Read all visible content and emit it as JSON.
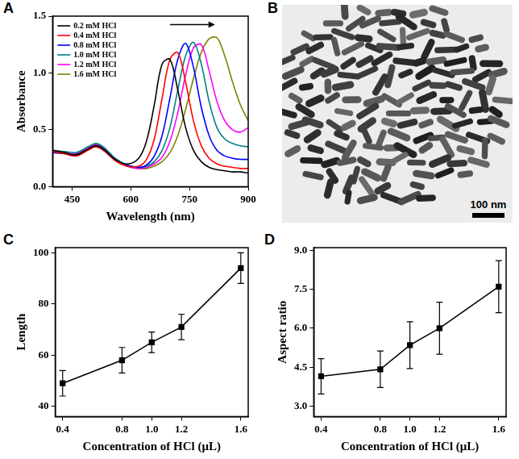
{
  "chart_data": [
    {
      "panel": "A",
      "type": "line",
      "x_label": "Wavelength (nm)",
      "y_label": "Absorbance",
      "x": [
        400,
        430,
        460,
        490,
        510,
        530,
        560,
        590,
        620,
        640,
        660,
        680,
        700,
        720,
        740,
        760,
        780,
        800,
        820,
        840,
        860,
        880,
        900
      ],
      "series": [
        {
          "name": "0.2 mM HCl",
          "color": "#000000",
          "values": [
            0.32,
            0.3,
            0.28,
            0.33,
            0.36,
            0.33,
            0.24,
            0.2,
            0.25,
            0.4,
            0.72,
            1.08,
            1.12,
            0.85,
            0.52,
            0.32,
            0.22,
            0.17,
            0.15,
            0.14,
            0.13,
            0.13,
            0.12
          ]
        },
        {
          "name": "0.4 mM HCl",
          "color": "#ff0000",
          "values": [
            0.31,
            0.29,
            0.27,
            0.32,
            0.35,
            0.32,
            0.23,
            0.18,
            0.18,
            0.24,
            0.42,
            0.78,
            1.12,
            1.18,
            0.92,
            0.58,
            0.36,
            0.25,
            0.2,
            0.18,
            0.17,
            0.16,
            0.16
          ]
        },
        {
          "name": "0.8 mM HCl",
          "color": "#0000ff",
          "values": [
            0.3,
            0.29,
            0.28,
            0.33,
            0.36,
            0.33,
            0.24,
            0.19,
            0.17,
            0.19,
            0.27,
            0.45,
            0.78,
            1.12,
            1.26,
            1.05,
            0.7,
            0.45,
            0.32,
            0.27,
            0.25,
            0.24,
            0.24
          ]
        },
        {
          "name": "1.0 mM HCl",
          "color": "#008080",
          "values": [
            0.32,
            0.31,
            0.3,
            0.35,
            0.38,
            0.35,
            0.25,
            0.19,
            0.17,
            0.18,
            0.22,
            0.32,
            0.52,
            0.85,
            1.15,
            1.27,
            1.08,
            0.75,
            0.52,
            0.42,
            0.38,
            0.36,
            0.35
          ]
        },
        {
          "name": "1.2 mM HCl",
          "color": "#ff00ff",
          "values": [
            0.31,
            0.3,
            0.29,
            0.34,
            0.37,
            0.34,
            0.24,
            0.18,
            0.16,
            0.17,
            0.2,
            0.26,
            0.4,
            0.65,
            0.98,
            1.22,
            1.25,
            1.02,
            0.75,
            0.58,
            0.5,
            0.48,
            0.52
          ]
        },
        {
          "name": "1.6 mM HCl",
          "color": "#808000",
          "values": [
            0.3,
            0.29,
            0.28,
            0.32,
            0.35,
            0.32,
            0.23,
            0.18,
            0.16,
            0.16,
            0.18,
            0.22,
            0.3,
            0.45,
            0.68,
            0.95,
            1.18,
            1.3,
            1.31,
            1.15,
            0.92,
            0.72,
            0.58
          ]
        }
      ],
      "xlim": [
        400,
        900
      ],
      "xticks": [
        450,
        600,
        750,
        900
      ],
      "ylim": [
        0,
        1.5
      ],
      "yticks": [
        {
          "value": 0,
          "label": "0.0"
        },
        {
          "value": 0.5,
          "label": "0.5"
        },
        {
          "value": 1,
          "label": "1.0"
        },
        {
          "value": 1.5,
          "label": "1.5"
        }
      ],
      "grid": false,
      "legend": "upper left"
    },
    {
      "panel": "C",
      "type": "line",
      "x_label": "Concentration of HCl (μL)",
      "y_label": "Length",
      "x": [
        0.4,
        0.8,
        1.0,
        1.2,
        1.6
      ],
      "values": [
        49,
        58,
        65,
        71,
        94
      ],
      "errors": [
        5,
        5,
        4,
        5,
        6
      ],
      "color": "#000000",
      "marker": "square",
      "xlim": [
        0.35,
        1.65
      ],
      "xticks": [
        0.4,
        0.8,
        {
          "value": 1,
          "label": "1.0"
        },
        1.2,
        1.6
      ],
      "ylim": [
        36,
        102
      ],
      "yticks": [
        40,
        60,
        80,
        100
      ],
      "grid": false
    },
    {
      "panel": "D",
      "type": "line",
      "x_label": "Concentration of HCl (μL)",
      "y_label": "Aspect ratio",
      "x": [
        0.4,
        0.8,
        1.0,
        1.2,
        1.6
      ],
      "values": [
        4.15,
        4.42,
        5.35,
        6.0,
        7.6
      ],
      "errors": [
        0.68,
        0.7,
        0.9,
        1.0,
        1.0
      ],
      "color": "#000000",
      "marker": "square",
      "xlim": [
        0.35,
        1.65
      ],
      "xticks": [
        0.4,
        0.8,
        {
          "value": 1,
          "label": "1.0"
        },
        1.2,
        1.6
      ],
      "ylim": [
        2.6,
        9.1
      ],
      "yticks": [
        {
          "value": 3,
          "label": "3.0"
        },
        4.5,
        {
          "value": 6,
          "label": "6.0"
        },
        7.5,
        {
          "value": 9,
          "label": "9.0"
        }
      ],
      "grid": false
    }
  ],
  "image": {
    "panel": "B",
    "scale_bar": "100 nm"
  }
}
